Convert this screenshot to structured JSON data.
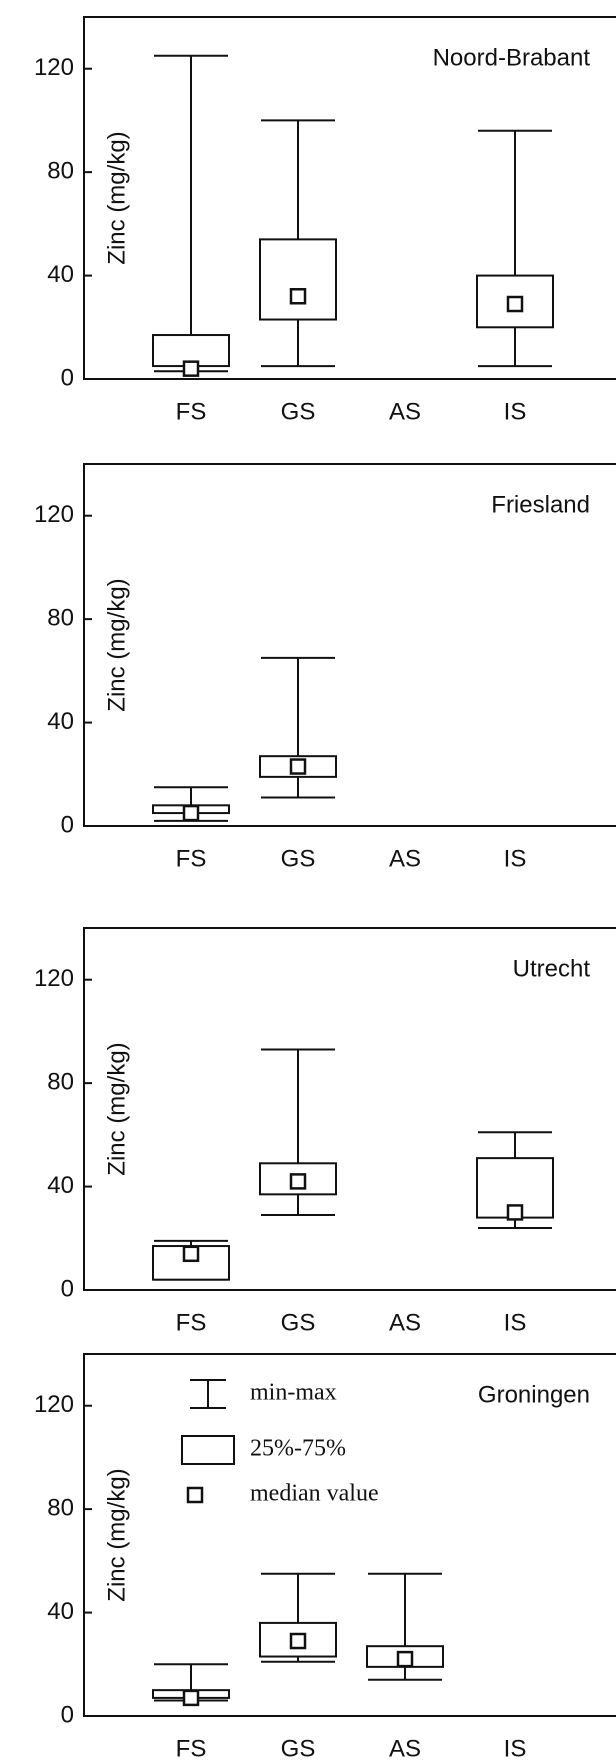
{
  "chart_data": [
    {
      "type": "box",
      "title": "Noord-Brabant",
      "y_label": "Zinc (mg/kg)",
      "categories": [
        "FS",
        "GS",
        "AS",
        "IS"
      ],
      "min": [
        3,
        5,
        null,
        5
      ],
      "q1": [
        5,
        23,
        null,
        20
      ],
      "median": [
        4,
        32,
        null,
        29
      ],
      "q3": [
        17,
        54,
        null,
        40
      ],
      "max": [
        125,
        100,
        null,
        96
      ],
      "ylim": [
        0,
        140
      ],
      "yticks": [
        0,
        40,
        80,
        120
      ]
    },
    {
      "type": "box",
      "title": "Friesland",
      "y_label": "Zinc (mg/kg)",
      "categories": [
        "FS",
        "GS",
        "AS",
        "IS"
      ],
      "min": [
        2,
        11,
        null,
        null
      ],
      "q1": [
        5,
        19,
        null,
        null
      ],
      "median": [
        5,
        23,
        null,
        null
      ],
      "q3": [
        8,
        27,
        null,
        null
      ],
      "max": [
        15,
        65,
        null,
        null
      ],
      "ylim": [
        0,
        140
      ],
      "yticks": [
        0,
        40,
        80,
        120
      ]
    },
    {
      "type": "box",
      "title": "Utrecht",
      "y_label": "Zinc (mg/kg)",
      "categories": [
        "FS",
        "GS",
        "AS",
        "IS"
      ],
      "min": [
        4,
        29,
        null,
        24
      ],
      "q1": [
        4,
        37,
        null,
        28
      ],
      "median": [
        14,
        42,
        null,
        30
      ],
      "q3": [
        17,
        49,
        null,
        51
      ],
      "max": [
        19,
        93,
        null,
        61
      ],
      "ylim": [
        0,
        140
      ],
      "yticks": [
        0,
        40,
        80,
        120
      ]
    },
    {
      "type": "box",
      "title": "Groningen",
      "y_label": "Zinc (mg/kg)",
      "categories": [
        "FS",
        "GS",
        "AS",
        "IS"
      ],
      "min": [
        6,
        21,
        14,
        null
      ],
      "q1": [
        7,
        23,
        19,
        null
      ],
      "median": [
        7,
        29,
        22,
        null
      ],
      "q3": [
        10,
        36,
        27,
        null
      ],
      "max": [
        20,
        55,
        55,
        null
      ],
      "ylim": [
        0,
        140
      ],
      "yticks": [
        0,
        40,
        80,
        120
      ],
      "legend": [
        "min-max",
        "25%-75%",
        "median value"
      ]
    }
  ]
}
